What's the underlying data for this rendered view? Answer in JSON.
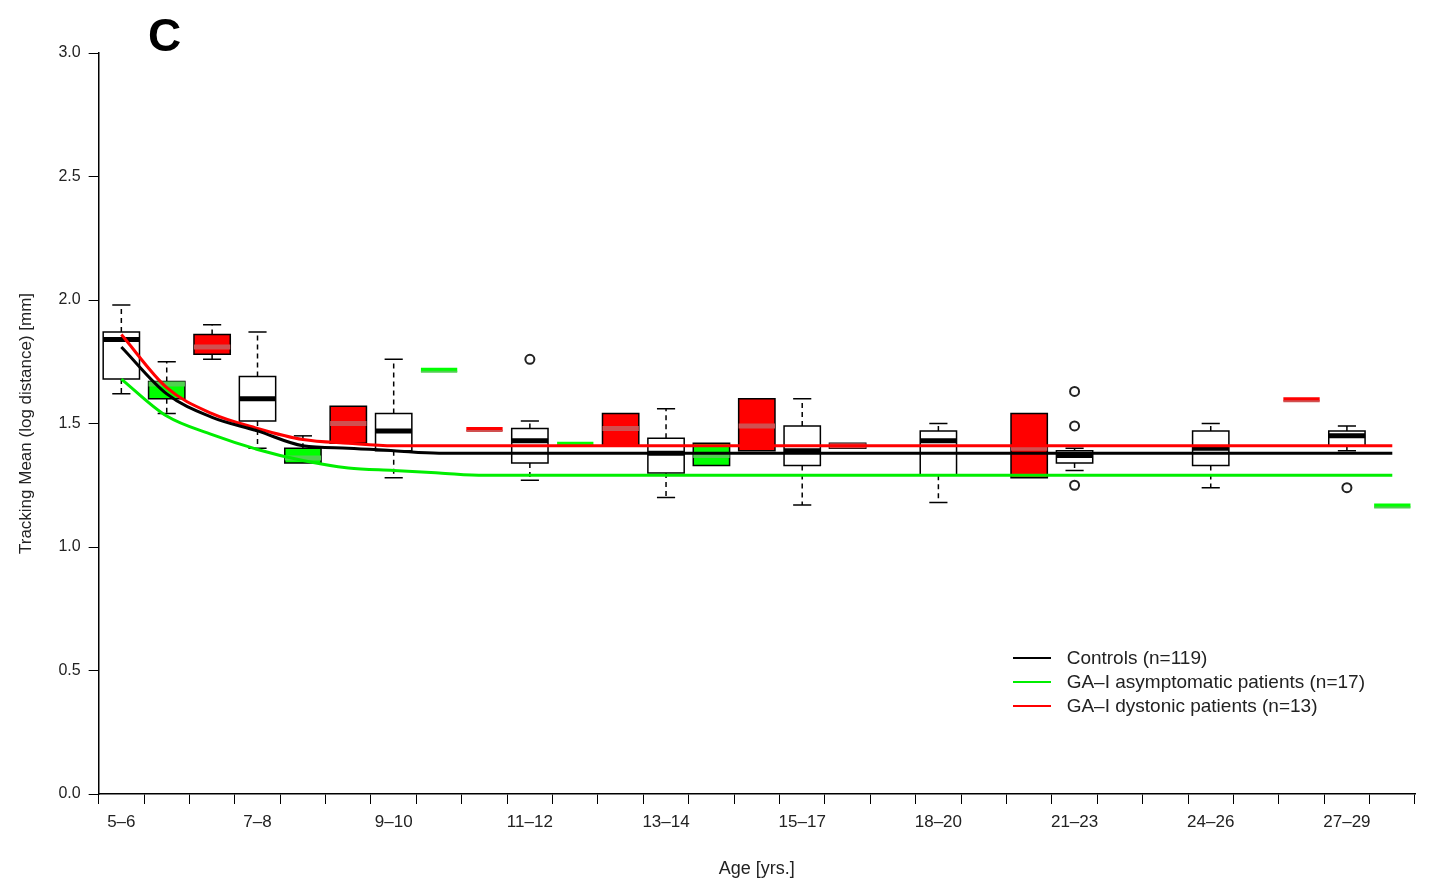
{
  "chart_data": {
    "type": "box",
    "title": "C",
    "xlabel": "Age [yrs.]",
    "ylabel": "Tracking Mean (log distance) [mm]",
    "categories": [
      "5–6",
      null,
      null,
      "7–8",
      null,
      null,
      "9–10",
      null,
      null,
      "11–12",
      null,
      null,
      "13–14",
      null,
      null,
      "15–17",
      null,
      null,
      "18–20",
      null,
      null,
      "21–23",
      null,
      null,
      "24–26",
      null,
      null,
      "27–29",
      null
    ],
    "ylim": [
      0,
      3
    ],
    "yticks": [
      {
        "value": 0,
        "label": "0.0"
      },
      {
        "value": 0.5,
        "label": "0.5"
      },
      {
        "value": 1,
        "label": "1.0"
      },
      {
        "value": 1.5,
        "label": "1.5"
      },
      {
        "value": 2,
        "label": "2.0"
      },
      {
        "value": 2.5,
        "label": "2.5"
      },
      {
        "value": 3,
        "label": "3.0"
      }
    ],
    "grid": false,
    "legend": "bottom right",
    "series": [
      {
        "color": "#ffffff",
        "boxes": [
          {
            "low": 1.62,
            "q1": 1.68,
            "median": 1.84,
            "q3": 1.87,
            "high": 1.98
          },
          null,
          null,
          {
            "low": 1.4,
            "q1": 1.51,
            "median": 1.6,
            "q3": 1.69,
            "high": 1.87
          },
          null,
          null,
          {
            "low": 1.28,
            "q1": 1.39,
            "median": 1.47,
            "q3": 1.54,
            "high": 1.76
          },
          null,
          null,
          {
            "low": 1.27,
            "q1": 1.34,
            "median": 1.43,
            "q3": 1.48,
            "high": 1.51,
            "outliers": [
              1.76
            ]
          },
          null,
          null,
          {
            "low": 1.2,
            "q1": 1.3,
            "median": 1.38,
            "q3": 1.44,
            "high": 1.56
          },
          null,
          null,
          {
            "low": 1.17,
            "q1": 1.33,
            "median": 1.39,
            "q3": 1.49,
            "high": 1.6
          },
          null,
          null,
          {
            "low": 1.18,
            "q1": 1.29,
            "median": 1.43,
            "q3": 1.47,
            "high": 1.5
          },
          null,
          null,
          {
            "low": 1.31,
            "q1": 1.34,
            "median": 1.37,
            "q3": 1.39,
            "high": 1.4,
            "outliers": [
              1.25,
              1.49,
              1.63
            ]
          },
          null,
          null,
          {
            "low": 1.24,
            "q1": 1.33,
            "median": 1.4,
            "q3": 1.47,
            "high": 1.5
          },
          null,
          null,
          {
            "low": 1.39,
            "q1": 1.41,
            "median": 1.45,
            "q3": 1.47,
            "high": 1.49,
            "outliers": [
              1.24
            ]
          },
          null
        ]
      },
      {
        "color": "#00ff00",
        "boxes": [
          null,
          {
            "low": 1.54,
            "q1": 1.6,
            "median": 1.66,
            "q3": 1.67,
            "high": 1.75
          },
          null,
          null,
          {
            "low": 1.34,
            "q1": 1.34,
            "median": 1.36,
            "q3": 1.4,
            "high": 1.45
          },
          null,
          null,
          {
            "low": 1.71,
            "q1": 1.71,
            "median": 1.71,
            "q3": 1.71,
            "high": 1.71
          },
          null,
          null,
          {
            "low": 1.41,
            "q1": 1.41,
            "median": 1.41,
            "q3": 1.41,
            "high": 1.41
          },
          null,
          null,
          {
            "low": 1.33,
            "q1": 1.33,
            "median": 1.37,
            "q3": 1.42,
            "high": 1.42
          },
          null,
          null,
          null,
          null,
          null,
          null,
          null,
          null,
          null,
          null,
          null,
          null,
          null,
          null,
          {
            "low": 1.16,
            "q1": 1.16,
            "median": 1.16,
            "q3": 1.16,
            "high": 1.16
          }
        ]
      },
      {
        "color": "#ff0000",
        "boxes": [
          null,
          null,
          {
            "low": 1.76,
            "q1": 1.78,
            "median": 1.81,
            "q3": 1.86,
            "high": 1.9
          },
          null,
          null,
          {
            "low": 1.42,
            "q1": 1.42,
            "median": 1.5,
            "q3": 1.57,
            "high": 1.57
          },
          null,
          null,
          {
            "low": 1.47,
            "q1": 1.47,
            "median": 1.47,
            "q3": 1.47,
            "high": 1.47
          },
          null,
          null,
          {
            "low": 1.41,
            "q1": 1.41,
            "median": 1.48,
            "q3": 1.54,
            "high": 1.54
          },
          null,
          null,
          {
            "low": 1.39,
            "q1": 1.39,
            "median": 1.49,
            "q3": 1.6,
            "high": 1.6
          },
          null,
          {
            "low": 1.4,
            "q1": 1.4,
            "median": 1.41,
            "q3": 1.42,
            "high": 1.42
          },
          null,
          null,
          null,
          {
            "low": 1.28,
            "q1": 1.28,
            "median": 1.4,
            "q3": 1.54,
            "high": 1.54
          },
          null,
          null,
          null,
          null,
          null,
          {
            "low": 1.59,
            "q1": 1.59,
            "median": 1.59,
            "q3": 1.59,
            "high": 1.59
          },
          null,
          null
        ]
      },
      {
        "type": "line",
        "name": "Controls (n=119)",
        "color": "#000000",
        "values": [
          1.81,
          1.62,
          1.525,
          1.47,
          1.41,
          1.4,
          1.39,
          1.38,
          1.38,
          1.38,
          1.38,
          1.38,
          1.38,
          1.38,
          1.38,
          1.38,
          1.38,
          1.38,
          1.38,
          1.38,
          1.38,
          1.38,
          1.38,
          1.38,
          1.38,
          1.38,
          1.38,
          1.38,
          1.38
        ]
      },
      {
        "type": "line",
        "name": "GA–I asymptomatic patients (n=17)",
        "color": "#00ee00",
        "values": [
          1.68,
          1.53,
          1.455,
          1.395,
          1.35,
          1.32,
          1.31,
          1.3,
          1.29,
          1.29,
          1.29,
          1.29,
          1.29,
          1.29,
          1.29,
          1.29,
          1.29,
          1.29,
          1.29,
          1.29,
          1.29,
          1.29,
          1.29,
          1.29,
          1.29,
          1.29,
          1.29,
          1.29,
          1.29
        ]
      },
      {
        "type": "line",
        "name": "GA–I dystonic patients (n=13)",
        "color": "#ff0000",
        "values": [
          1.86,
          1.645,
          1.54,
          1.48,
          1.435,
          1.42,
          1.41,
          1.41,
          1.41,
          1.41,
          1.41,
          1.41,
          1.41,
          1.41,
          1.41,
          1.41,
          1.41,
          1.41,
          1.41,
          1.41,
          1.41,
          1.41,
          1.41,
          1.41,
          1.41,
          1.41,
          1.41,
          1.41,
          1.41
        ]
      }
    ]
  }
}
